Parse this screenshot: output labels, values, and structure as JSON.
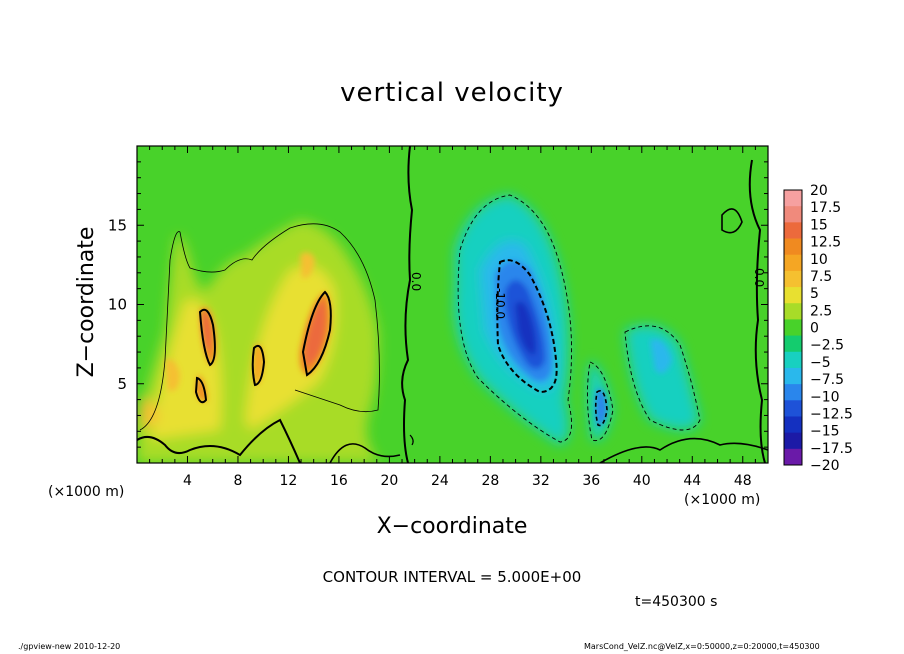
{
  "chart_data": {
    "type": "heatmap",
    "title": "vertical velocity",
    "xlabel": "X−coordinate",
    "ylabel": "Z−coordinate",
    "x_unit": "(×1000 m)",
    "xlim": [
      0,
      50
    ],
    "ylim": [
      0,
      20
    ],
    "x_ticks": [
      4,
      8,
      12,
      16,
      20,
      24,
      28,
      32,
      36,
      40,
      44,
      48
    ],
    "y_ticks": [
      5,
      10,
      15
    ],
    "contour_interval_text": "CONTOUR INTERVAL = 5.000E+00",
    "contour_labels": [
      "0.0",
      "-10.0",
      "0.0"
    ],
    "colorbar": {
      "labels": [
        "20",
        "17.5",
        "15",
        "12.5",
        "10",
        "7.5",
        "5",
        "2.5",
        "0",
        "−2.5",
        "−5",
        "−7.5",
        "−10",
        "−12.5",
        "−15",
        "−17.5",
        "−20"
      ],
      "colors": [
        "#f6a0a0",
        "#f08a7c",
        "#ec6a3c",
        "#f08a20",
        "#f5a623",
        "#f5c030",
        "#e8e030",
        "#a8dc28",
        "#48d22a",
        "#14cc6e",
        "#18d0c0",
        "#2ab8ec",
        "#2a86ec",
        "#1e52d8",
        "#1430c0",
        "#1c1aa6",
        "#6a1aa8"
      ]
    },
    "features": [
      {
        "name": "updraft",
        "x": 5.5,
        "z": 8.5,
        "w": 12
      },
      {
        "name": "updraft",
        "x": 14.5,
        "z": 8.5,
        "w": 13
      },
      {
        "name": "updraft",
        "x": 10,
        "z": 7,
        "w": 8
      },
      {
        "name": "downdraft",
        "x": 30.5,
        "z": 9,
        "w": -13
      },
      {
        "name": "downdraft",
        "x": 37,
        "z": 3,
        "w": -9
      },
      {
        "name": "downdraft",
        "x": 40,
        "z": 7,
        "w": -5
      }
    ]
  },
  "annotations": {
    "time_text": "t=450300 s",
    "footer_left": "./gpview-new  2010-12-20",
    "footer_right": "MarsCond_VelZ.nc@VelZ,x=0:50000,z=0:20000,t=450300"
  }
}
